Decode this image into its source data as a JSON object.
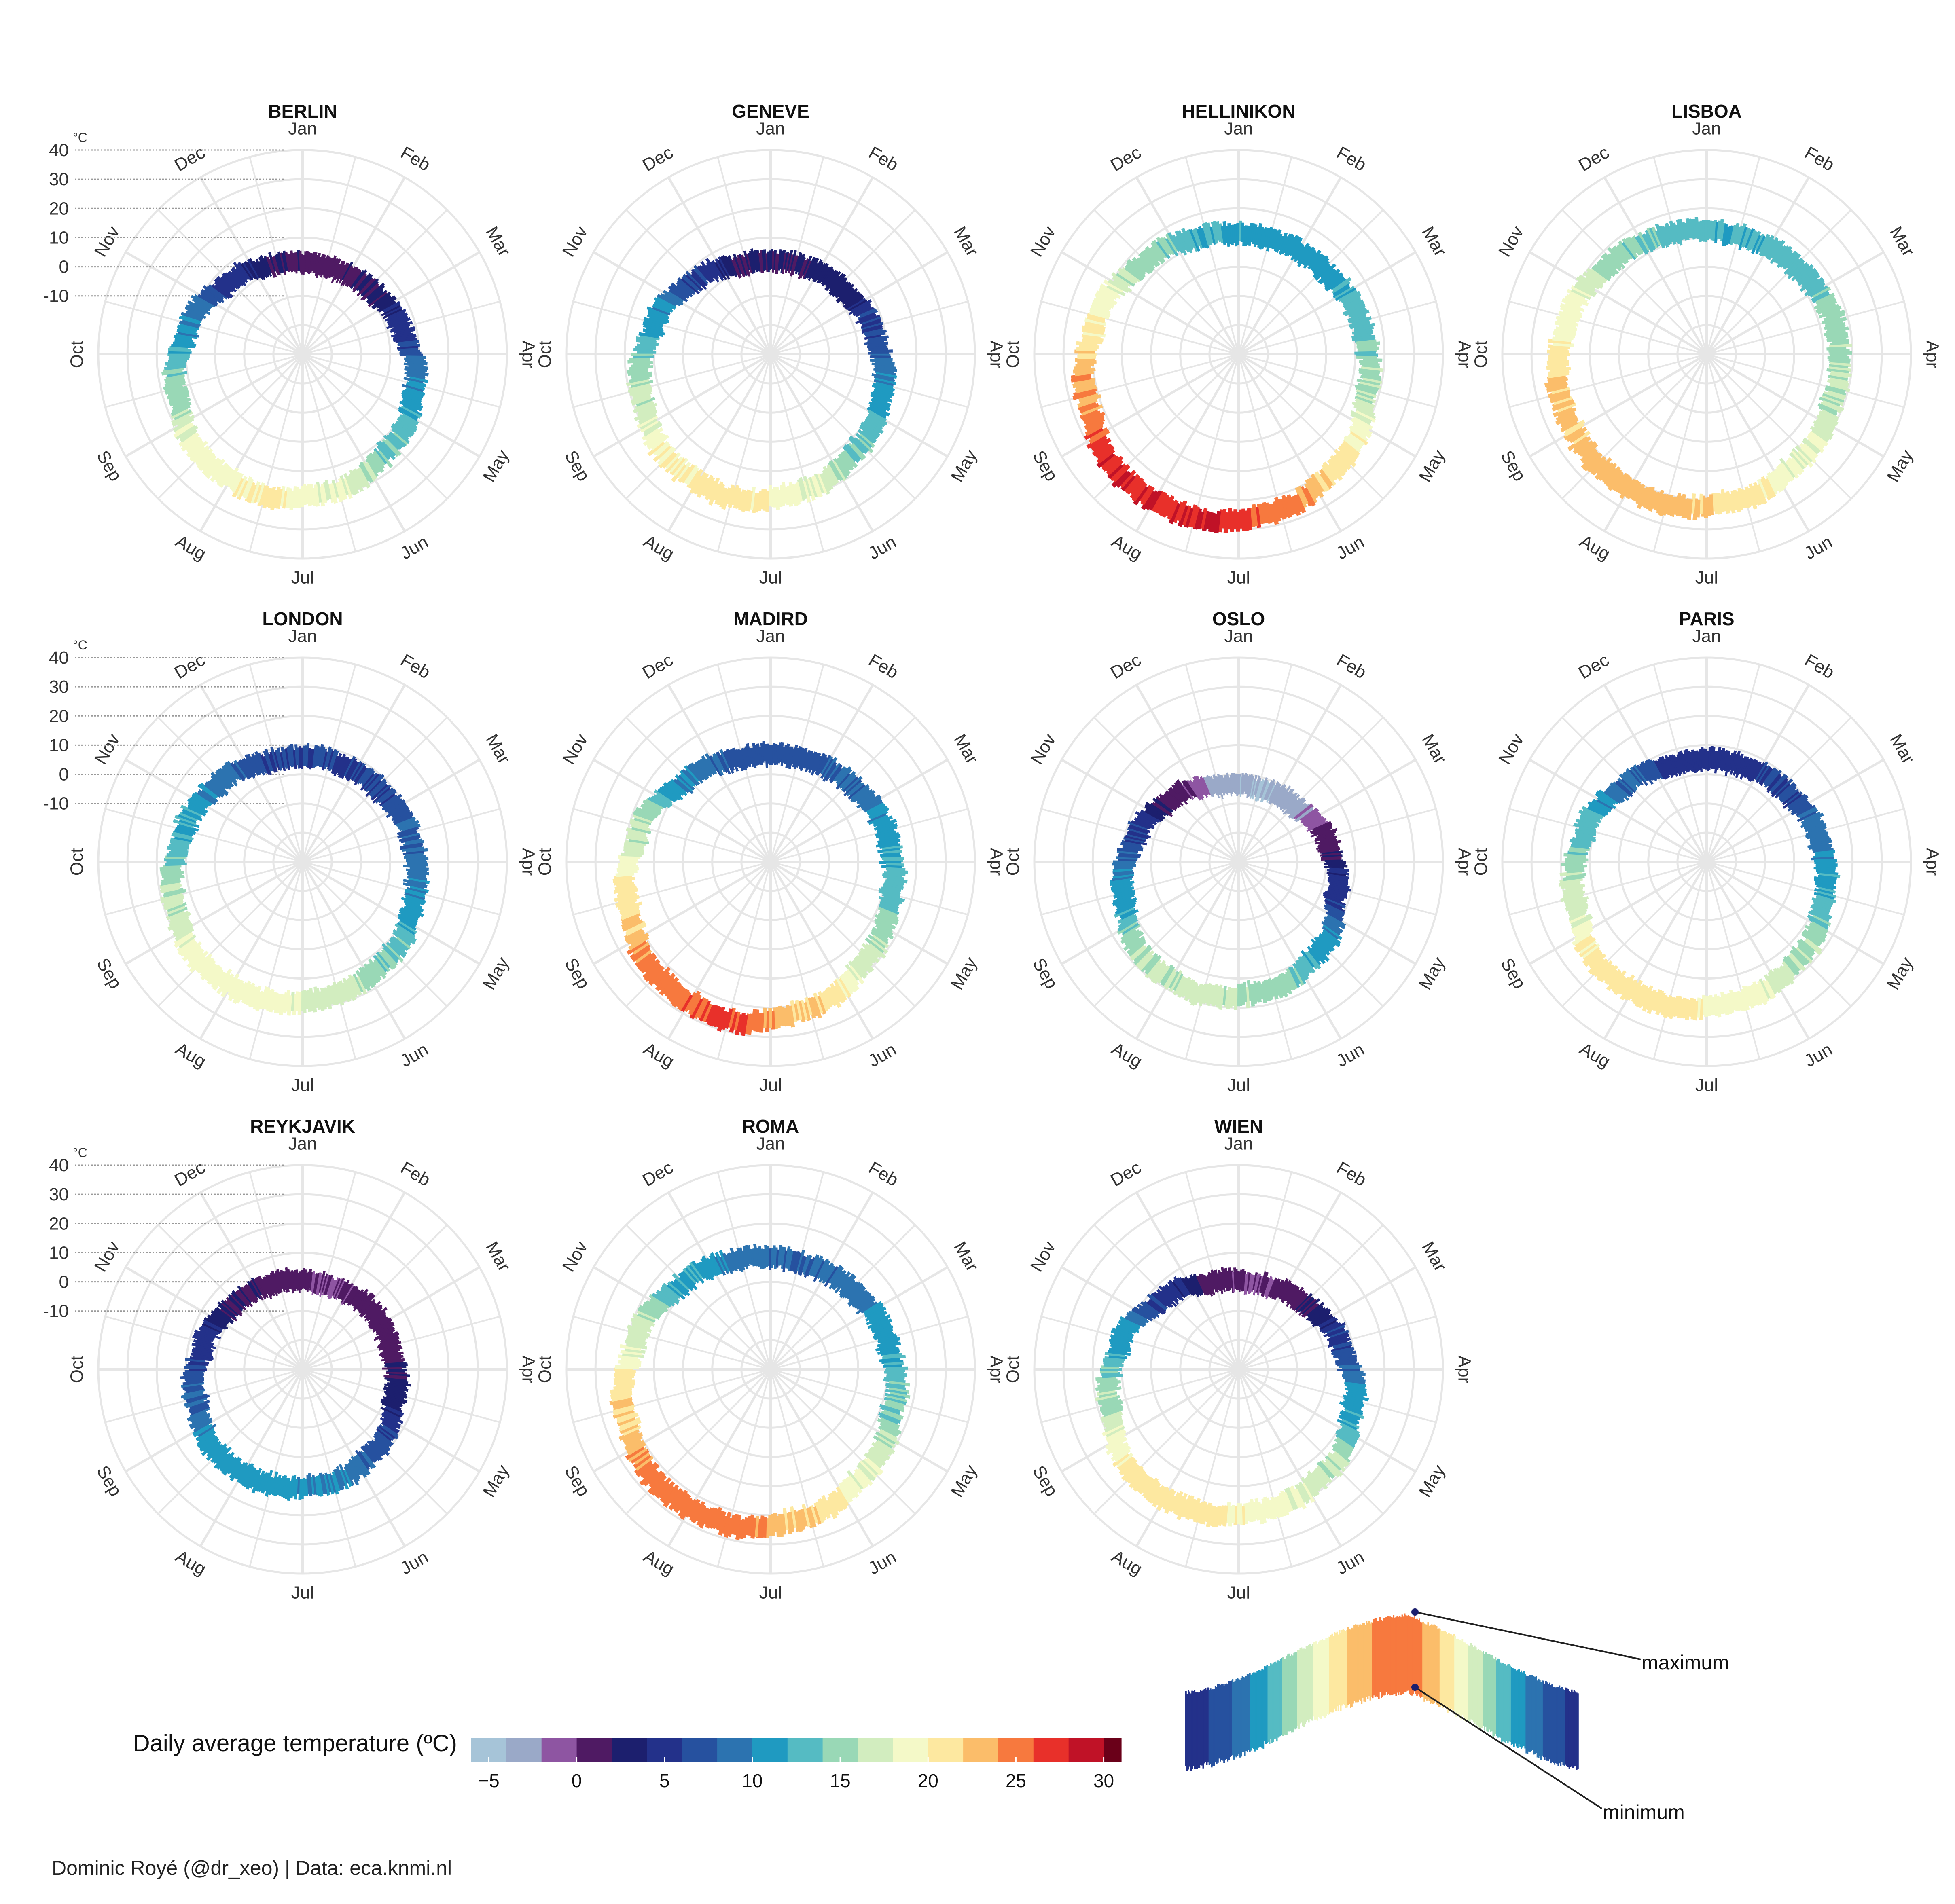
{
  "months": [
    "Jan",
    "Feb",
    "Mar",
    "Apr",
    "May",
    "Jun",
    "Jul",
    "Aug",
    "Sep",
    "Oct",
    "Nov",
    "Dec"
  ],
  "radial_axis": {
    "unit": "ºC",
    "ticks": [
      40,
      30,
      20,
      10,
      0,
      -10
    ],
    "range": [
      -30,
      40
    ]
  },
  "chart_data": [
    {
      "type": "polar-area",
      "title": "BERLIN",
      "monthly_mean_c": [
        1,
        2,
        5,
        10,
        14,
        18,
        20,
        19,
        15,
        10,
        5,
        2
      ],
      "band_width_c": 7
    },
    {
      "type": "polar-area",
      "title": "GENEVE",
      "monthly_mean_c": [
        2,
        3,
        6,
        10,
        14,
        18,
        21,
        20,
        16,
        11,
        6,
        2
      ],
      "band_width_c": 7
    },
    {
      "type": "polar-area",
      "title": "HELLINIKON",
      "monthly_mean_c": [
        11,
        11,
        13,
        16,
        21,
        25,
        28,
        28,
        24,
        20,
        15,
        12
      ],
      "band_width_c": 7
    },
    {
      "type": "polar-area",
      "title": "LISBOA",
      "monthly_mean_c": [
        12,
        13,
        15,
        16,
        18,
        21,
        23,
        23,
        22,
        19,
        15,
        13
      ],
      "band_width_c": 7
    },
    {
      "type": "polar-area",
      "title": "LONDON",
      "monthly_mean_c": [
        6,
        6,
        8,
        10,
        14,
        17,
        19,
        19,
        16,
        12,
        9,
        6
      ],
      "band_width_c": 7
    },
    {
      "type": "polar-area",
      "title": "MADIRD",
      "monthly_mean_c": [
        7,
        8,
        11,
        13,
        17,
        22,
        26,
        25,
        21,
        16,
        10,
        7
      ],
      "band_width_c": 7
    },
    {
      "type": "polar-area",
      "title": "OSLO",
      "monthly_mean_c": [
        -4,
        -3,
        1,
        5,
        11,
        15,
        17,
        16,
        11,
        6,
        1,
        -3
      ],
      "band_width_c": 7
    },
    {
      "type": "polar-area",
      "title": "PARIS",
      "monthly_mean_c": [
        5,
        6,
        9,
        12,
        16,
        19,
        21,
        21,
        17,
        13,
        8,
        5
      ],
      "band_width_c": 7
    },
    {
      "type": "polar-area",
      "title": "REYKJAVIK",
      "monthly_mean_c": [
        0,
        1,
        1,
        3,
        7,
        10,
        11,
        11,
        8,
        5,
        2,
        1
      ],
      "band_width_c": 7
    },
    {
      "type": "polar-area",
      "title": "ROMA",
      "monthly_mean_c": [
        8,
        9,
        11,
        14,
        18,
        22,
        25,
        25,
        22,
        17,
        12,
        9
      ],
      "band_width_c": 7
    },
    {
      "type": "polar-area",
      "title": "WIEN",
      "monthly_mean_c": [
        0,
        2,
        6,
        11,
        16,
        19,
        21,
        21,
        16,
        11,
        5,
        1
      ],
      "band_width_c": 7
    }
  ],
  "legend": {
    "title": "Daily average temperature (ºC)",
    "range": [
      -6,
      31
    ],
    "bins": [
      -6,
      -4,
      -2,
      0,
      2,
      4,
      6,
      8,
      10,
      12,
      14,
      16,
      18,
      20,
      22,
      24,
      26,
      28,
      30
    ],
    "colors": [
      "#c9e7f2",
      "#a6c4d8",
      "#9aa9c8",
      "#8e55a2",
      "#4f1a63",
      "#1c1f6e",
      "#23318a",
      "#26519f",
      "#2c73b0",
      "#1f9ac1",
      "#55bbc3",
      "#99d8b6",
      "#d2edbf",
      "#f4f9c8",
      "#fde8a0",
      "#fbbd6a",
      "#f7793e",
      "#e8302a",
      "#c01227",
      "#6a0019",
      "#140005"
    ],
    "tick_labels": [
      "−5",
      "0",
      "5",
      "10",
      "15",
      "20",
      "25",
      "30"
    ],
    "tick_values": [
      -5,
      0,
      5,
      10,
      15,
      20,
      25,
      30
    ]
  },
  "inset": {
    "max_label": "maximum",
    "min_label": "minimum"
  },
  "colors": {
    "grid": "#e6e6e6",
    "text": "#333333",
    "title": "#111111"
  },
  "caption": "Dominic Royé (@dr_xeo) | Data: eca.knmi.nl"
}
